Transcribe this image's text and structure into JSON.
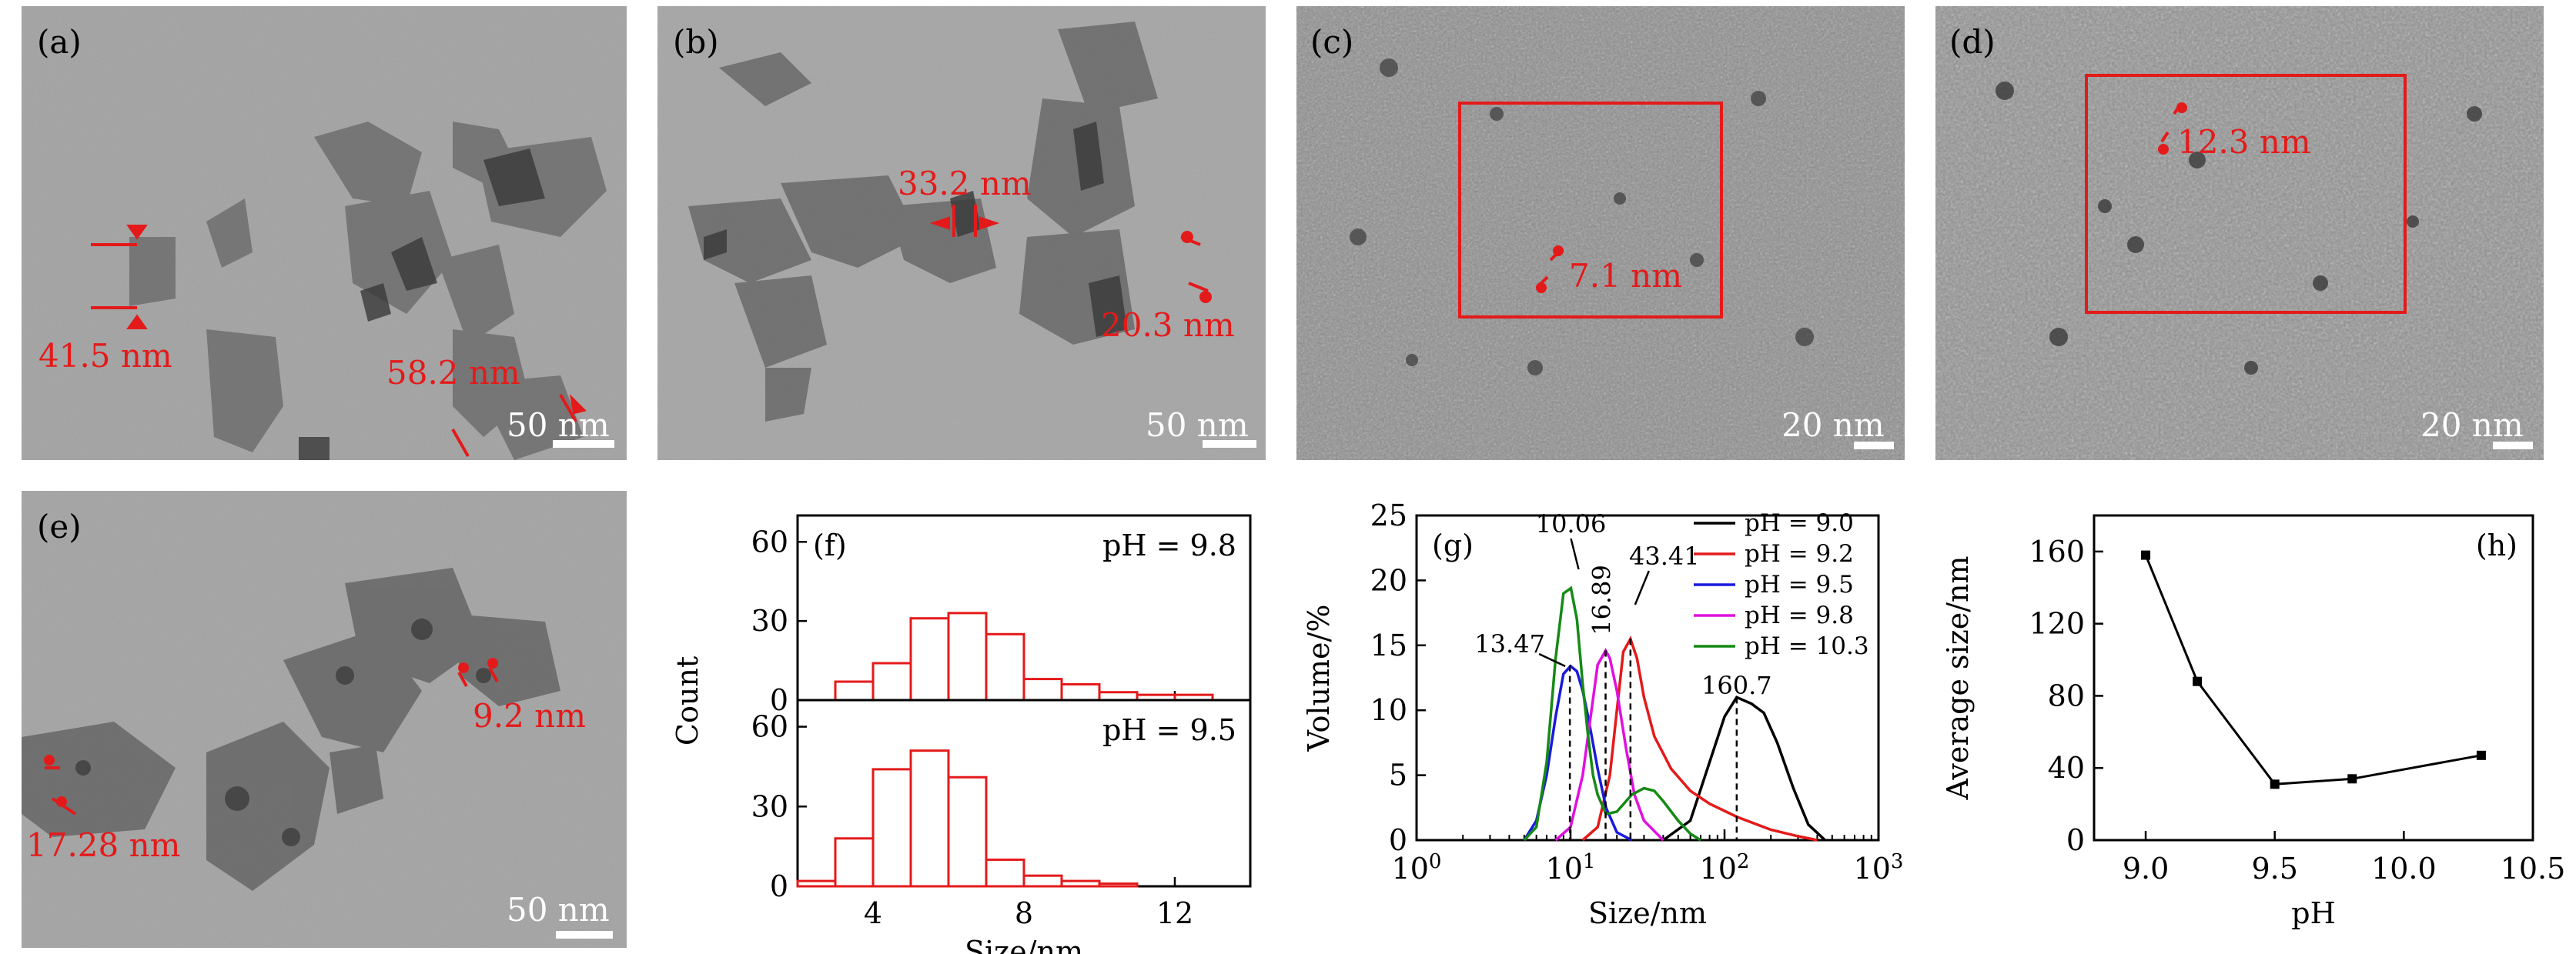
{
  "panels": {
    "a": {
      "label": "(a)",
      "scale": "50 nm",
      "annotations": [
        "41.5 nm",
        "58.2 nm"
      ]
    },
    "b": {
      "label": "(b)",
      "scale": "50 nm",
      "annotations": [
        "33.2 nm",
        "20.3 nm"
      ]
    },
    "c": {
      "label": "(c)",
      "scale": "20 nm",
      "annotations": [
        "7.1 nm"
      ]
    },
    "d": {
      "label": "(d)",
      "scale": "20 nm",
      "annotations": [
        "12.3 nm"
      ]
    },
    "e": {
      "label": "(e)",
      "scale": "50 nm",
      "annotations": [
        "9.2 nm",
        "17.28 nm"
      ]
    }
  },
  "colors": {
    "annotation": "#e41a1a",
    "tem_background": "#9a9a9a",
    "scale_text": "#ffffff"
  },
  "chart_data": [
    {
      "type": "bar",
      "panel": "(f)",
      "xlabel": "Size/nm",
      "ylabel": "Count",
      "xlim": [
        2,
        14
      ],
      "xticks": [
        "4",
        "8",
        "12"
      ],
      "subplots": [
        {
          "title": "pH = 9.8",
          "ylim": [
            0,
            70
          ],
          "yticks": [
            "0",
            "30",
            "60"
          ],
          "bin_edges": [
            3,
            4,
            5,
            6,
            7,
            8,
            9,
            10,
            11,
            12,
            13
          ],
          "values": [
            7,
            14,
            31,
            33,
            25,
            8,
            6,
            3,
            2,
            2
          ]
        },
        {
          "title": "pH = 9.5",
          "ylim": [
            0,
            70
          ],
          "yticks": [
            "0",
            "30",
            "60"
          ],
          "bin_edges": [
            2,
            3,
            4,
            5,
            6,
            7,
            8,
            9,
            10,
            11,
            12
          ],
          "values": [
            2,
            18,
            44,
            51,
            41,
            10,
            4,
            2,
            1,
            0
          ]
        }
      ]
    },
    {
      "type": "line",
      "panel": "(g)",
      "xlabel": "Size/nm",
      "ylabel": "Volume/%",
      "xscale": "log",
      "xlim": [
        1,
        1000
      ],
      "ylim": [
        0,
        25
      ],
      "xticks": [
        "10^0",
        "10^1",
        "10^2",
        "10^3"
      ],
      "yticks": [
        "0",
        "5",
        "10",
        "15",
        "20",
        "25"
      ],
      "legend": "top-right",
      "series": [
        {
          "name": "pH = 9.0",
          "color": "#000000",
          "x": [
            40,
            60,
            80,
            100,
            120,
            150,
            180,
            220,
            280,
            350,
            450
          ],
          "y": [
            0,
            1.5,
            6,
            9.5,
            11,
            10.5,
            9.8,
            7.5,
            4,
            1.2,
            0
          ]
        },
        {
          "name": "pH = 9.2",
          "color": "#e41a1a",
          "x": [
            12,
            15,
            18,
            20,
            22,
            24.5,
            27,
            30,
            35,
            45,
            60,
            80,
            120,
            200,
            300,
            400
          ],
          "y": [
            0,
            1,
            5,
            10,
            14.5,
            15.5,
            14,
            11,
            8,
            5.5,
            3.8,
            2.8,
            1.8,
            0.8,
            0.3,
            0
          ]
        },
        {
          "name": "pH = 9.5",
          "color": "#1a1adc",
          "x": [
            5,
            6,
            7,
            8,
            9,
            10,
            11,
            12,
            13,
            15,
            17,
            20,
            25
          ],
          "y": [
            0,
            1.5,
            5,
            9.5,
            12.8,
            13.4,
            13,
            11.5,
            9.5,
            5.5,
            2.5,
            0.6,
            0
          ]
        },
        {
          "name": "pH = 9.8",
          "color": "#e010e0",
          "x": [
            8,
            10,
            12,
            13.5,
            15,
            16.9,
            18,
            20,
            23,
            26,
            30,
            40
          ],
          "y": [
            0,
            1,
            5,
            9.5,
            13.5,
            14.6,
            14,
            11.5,
            7,
            3.5,
            1.5,
            0
          ]
        },
        {
          "name": "pH = 10.3",
          "color": "#158a15",
          "x": [
            5,
            6,
            7,
            8,
            9,
            10.06,
            11,
            12,
            13,
            14,
            15,
            17,
            20,
            25,
            30,
            35,
            40,
            50,
            60,
            70
          ],
          "y": [
            0,
            1,
            6,
            14,
            19,
            19.4,
            17,
            12,
            8,
            5,
            3.5,
            2,
            2.2,
            3.5,
            4,
            3.8,
            3,
            1.5,
            0.5,
            0
          ]
        }
      ],
      "annotations": [
        {
          "text": "10.06",
          "x": 10.06
        },
        {
          "text": "13.47",
          "x": 9.9
        },
        {
          "text": "16.89",
          "x": 16.89
        },
        {
          "text": "43.41",
          "x": 24.5
        },
        {
          "text": "160.7",
          "x": 120
        }
      ]
    },
    {
      "type": "line",
      "panel": "(h)",
      "xlabel": "pH",
      "ylabel": "Average size/nm",
      "xlim": [
        8.8,
        10.5
      ],
      "ylim": [
        0,
        180
      ],
      "xticks": [
        "9.0",
        "9.5",
        "10.0",
        "10.5"
      ],
      "yticks": [
        "0",
        "40",
        "80",
        "120",
        "160"
      ],
      "series": [
        {
          "x": [
            9.0,
            9.2,
            9.5,
            9.8,
            10.3
          ],
          "y": [
            158,
            88,
            31,
            34,
            47
          ],
          "color": "#000000"
        }
      ]
    }
  ]
}
